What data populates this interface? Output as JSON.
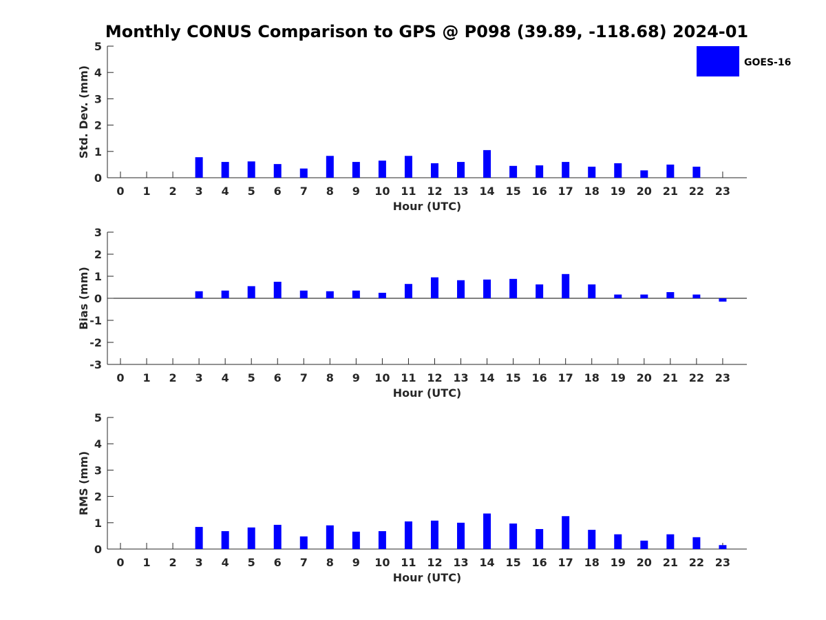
{
  "title": "Monthly CONUS Comparison to GPS @ P098 (39.89, -118.68) 2024-01",
  "legend": {
    "label": "GOES-16",
    "position": "top-right"
  },
  "colors": {
    "bar": "#0000ff",
    "axis": "#262626"
  },
  "chart_data": [
    {
      "type": "bar",
      "categories": [
        "0",
        "1",
        "2",
        "3",
        "4",
        "5",
        "6",
        "7",
        "8",
        "9",
        "10",
        "11",
        "12",
        "13",
        "14",
        "15",
        "16",
        "17",
        "18",
        "19",
        "20",
        "21",
        "22",
        "23"
      ],
      "series": [
        {
          "name": "GOES-16",
          "values": [
            null,
            null,
            null,
            0.78,
            0.6,
            0.62,
            0.52,
            0.35,
            0.83,
            0.6,
            0.65,
            0.83,
            0.55,
            0.6,
            1.05,
            0.45,
            0.47,
            0.6,
            0.42,
            0.55,
            0.28,
            0.5,
            0.42,
            null
          ]
        }
      ],
      "xlabel": "Hour (UTC)",
      "ylabel": "Std. Dev. (mm)",
      "ylim": [
        0,
        5
      ],
      "yticks": [
        "0",
        "1",
        "2",
        "3",
        "4",
        "5"
      ],
      "grid": false
    },
    {
      "type": "bar",
      "categories": [
        "0",
        "1",
        "2",
        "3",
        "4",
        "5",
        "6",
        "7",
        "8",
        "9",
        "10",
        "11",
        "12",
        "13",
        "14",
        "15",
        "16",
        "17",
        "18",
        "19",
        "20",
        "21",
        "22",
        "23"
      ],
      "series": [
        {
          "name": "GOES-16",
          "values": [
            null,
            null,
            null,
            0.32,
            0.35,
            0.55,
            0.75,
            0.35,
            0.32,
            0.35,
            0.25,
            0.65,
            0.95,
            0.82,
            0.85,
            0.88,
            0.63,
            1.1,
            0.63,
            0.17,
            0.17,
            0.28,
            0.17,
            -0.15
          ]
        }
      ],
      "xlabel": "Hour (UTC)",
      "ylabel": "Bias (mm)",
      "ylim": [
        -3,
        3
      ],
      "yticks": [
        "-3",
        "-2",
        "-1",
        "0",
        "1",
        "2",
        "3"
      ],
      "grid": false
    },
    {
      "type": "bar",
      "categories": [
        "0",
        "1",
        "2",
        "3",
        "4",
        "5",
        "6",
        "7",
        "8",
        "9",
        "10",
        "11",
        "12",
        "13",
        "14",
        "15",
        "16",
        "17",
        "18",
        "19",
        "20",
        "21",
        "22",
        "23"
      ],
      "series": [
        {
          "name": "GOES-16",
          "values": [
            null,
            null,
            null,
            0.84,
            0.68,
            0.82,
            0.92,
            0.48,
            0.9,
            0.66,
            0.68,
            1.05,
            1.08,
            1.0,
            1.35,
            0.97,
            0.76,
            1.25,
            0.73,
            0.56,
            0.32,
            0.56,
            0.45,
            0.15
          ]
        }
      ],
      "xlabel": "Hour (UTC)",
      "ylabel": "RMS (mm)",
      "ylim": [
        0,
        5
      ],
      "yticks": [
        "0",
        "1",
        "2",
        "3",
        "4",
        "5"
      ],
      "grid": false
    }
  ]
}
